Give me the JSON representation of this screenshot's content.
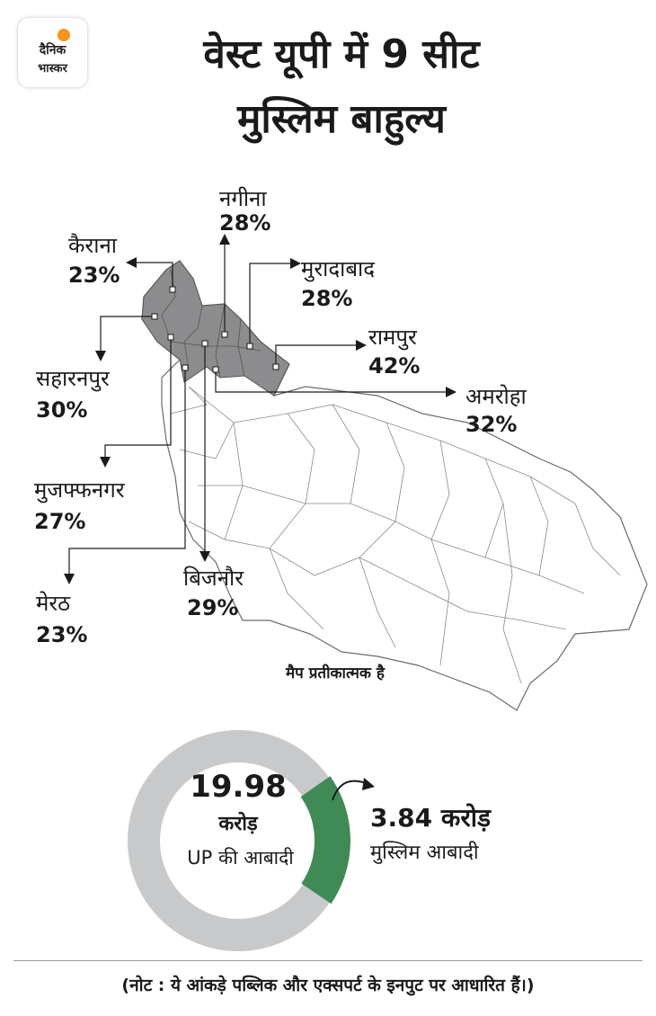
{
  "logo": {
    "line1": "दैनिक",
    "line2": "भास्कर"
  },
  "title": {
    "line1": "वेस्ट यूपी में 9 सीट",
    "line2": "मुस्लिम बाहुल्य"
  },
  "seats": [
    {
      "name": "नगीना",
      "percent": "28%"
    },
    {
      "name": "कैराना",
      "percent": "23%"
    },
    {
      "name": "मुरादाबाद",
      "percent": "28%"
    },
    {
      "name": "रामपुर",
      "percent": "42%"
    },
    {
      "name": "सहारनपुर",
      "percent": "30%"
    },
    {
      "name": "अमरोहा",
      "percent": "32%"
    },
    {
      "name": "मुजफ्फनगर",
      "percent": "27%"
    },
    {
      "name": "बिजनौर",
      "percent": "29%"
    },
    {
      "name": "मेरठ",
      "percent": "23%"
    }
  ],
  "map_note": "मैप प्रतीकात्मक है",
  "population": {
    "total_value": "19.98",
    "total_unit": "करोड़",
    "total_label": "UP की आबादी",
    "muslim_value": "3.84 करोड़",
    "muslim_label": "मुस्लिम आबादी",
    "muslim_share": 0.192
  },
  "colors": {
    "highlight_region": "#8c8c8e",
    "ring_grey": "#c8c9cb",
    "ring_green": "#3f8a55"
  },
  "footnote": "(नोट : ये आंकड़े पब्लिक और एक्सपर्ट के इनपुट पर आधारित हैं।)"
}
